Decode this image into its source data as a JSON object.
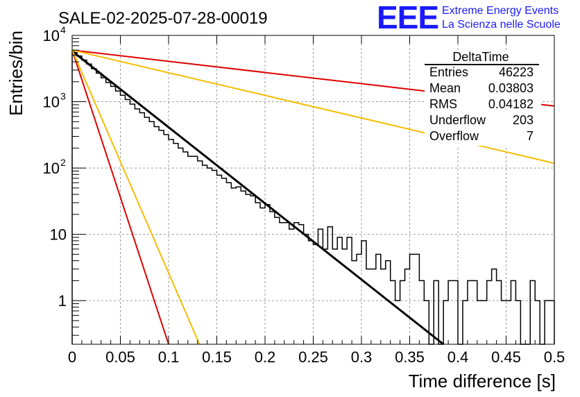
{
  "header": {
    "title": "SALE-02-2025-07-28-00019",
    "logo_text": "EEE",
    "logo_line1": "Extreme Energy Events",
    "logo_line2": "La Scienza nelle Scuole",
    "logo_color": "#1a1aff",
    "logo_text_color": "#e0001a"
  },
  "stats": {
    "title": "DeltaTime",
    "rows": [
      {
        "label": "Entries",
        "value": "46223"
      },
      {
        "label": "Mean",
        "value": "0.03803"
      },
      {
        "label": "RMS",
        "value": "0.04182"
      },
      {
        "label": "Underflow",
        "value": "203"
      },
      {
        "label": "Overflow",
        "value": "7"
      }
    ]
  },
  "chart_data": {
    "type": "histogram",
    "title": "SALE-02-2025-07-28-00019",
    "xlabel": "Time difference [s]",
    "ylabel": "Entries/bin",
    "xlim": [
      0,
      0.5
    ],
    "ylim": [
      0.22,
      10000
    ],
    "y_scale": "log",
    "grid": true,
    "x_ticks": [
      "0",
      "0.05",
      "0.1",
      "0.15",
      "0.2",
      "0.25",
      "0.3",
      "0.35",
      "0.4",
      "0.45",
      "0.5"
    ],
    "x_tick_values": [
      0,
      0.05,
      0.1,
      0.15,
      0.2,
      0.25,
      0.3,
      0.35,
      0.4,
      0.45,
      0.5
    ],
    "y_ticks": [
      {
        "value": 1,
        "label": "1"
      },
      {
        "value": 10,
        "label": "10"
      },
      {
        "value": 100,
        "label": "10",
        "exp": "2"
      },
      {
        "value": 1000,
        "label": "10",
        "exp": "3"
      },
      {
        "value": 10000,
        "label": "10",
        "exp": "4"
      }
    ],
    "bin_width": 0.005,
    "histogram": {
      "color": "#000000",
      "values": [
        5500,
        4900,
        4250,
        3700,
        3150,
        2700,
        2300,
        1950,
        1700,
        1450,
        1250,
        1080,
        920,
        780,
        680,
        580,
        500,
        420,
        370,
        320,
        270,
        235,
        200,
        175,
        150,
        150,
        128,
        110,
        100,
        92,
        78,
        70,
        60,
        50,
        52,
        45,
        40,
        38,
        30,
        25,
        28,
        22,
        18,
        15,
        15,
        12,
        15,
        14,
        10,
        8,
        7,
        12,
        6,
        13,
        6,
        9,
        6,
        9,
        4,
        5,
        8,
        3,
        3,
        5,
        3,
        4,
        2,
        1,
        2,
        3,
        5,
        5,
        2,
        1,
        0,
        2,
        0,
        1,
        2,
        2,
        0,
        1,
        2,
        2,
        1,
        1,
        2,
        3,
        2,
        1,
        1,
        2,
        1,
        0,
        0,
        2,
        1,
        0,
        1,
        1
      ]
    },
    "series": [
      {
        "color": "#000000",
        "x": [
          0,
          0.385
        ],
        "y": [
          5800,
          0.22
        ]
      },
      {
        "color": "#dd0000",
        "x": [
          0,
          0.5
        ],
        "y": [
          6000,
          860
        ]
      },
      {
        "color": "#f5bd00",
        "x": [
          0,
          0.5
        ],
        "y": [
          6000,
          118
        ]
      },
      {
        "color": "#dd0000",
        "x": [
          0,
          0.1
        ],
        "y": [
          6000,
          0.22
        ]
      },
      {
        "color": "#f5bd00",
        "x": [
          0,
          0.132
        ],
        "y": [
          6000,
          0.22
        ]
      }
    ]
  }
}
